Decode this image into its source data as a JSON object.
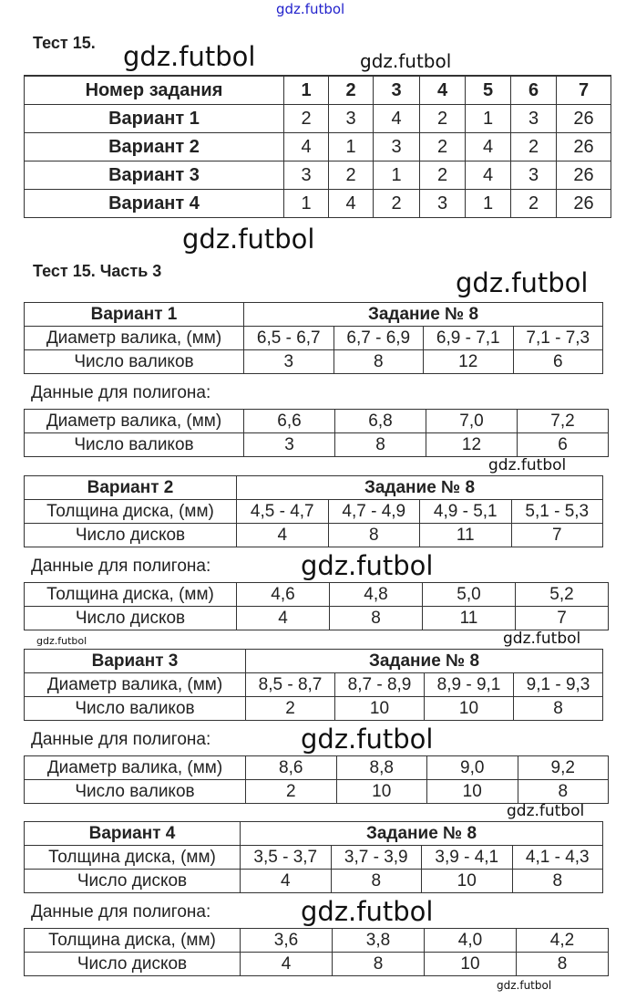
{
  "watermark": "gdz.futbol",
  "test_title": "Тест 15.",
  "part_title": "Тест 15. Часть 3",
  "summary_table": {
    "header": [
      "Номер задания",
      "1",
      "2",
      "3",
      "4",
      "5",
      "6",
      "7"
    ],
    "rows": [
      [
        "Вариант 1",
        "2",
        "3",
        "4",
        "2",
        "1",
        "3",
        "26"
      ],
      [
        "Вариант 2",
        "4",
        "1",
        "3",
        "2",
        "4",
        "2",
        "26"
      ],
      [
        "Вариант 3",
        "3",
        "2",
        "1",
        "2",
        "4",
        "3",
        "26"
      ],
      [
        "Вариант 4",
        "1",
        "4",
        "2",
        "3",
        "1",
        "2",
        "26"
      ]
    ]
  },
  "polygon_label": "Данные для полигона:",
  "variants": [
    {
      "variant": "Вариант 1",
      "task": "Задание № 8",
      "row1_label": "Диаметр валика, (мм)",
      "row2_label": "Число валиков",
      "intervals": [
        "6,5 - 6,7",
        "6,7 - 6,9",
        "6,9 - 7,1",
        "7,1 - 7,3"
      ],
      "midpoints": [
        "6,6",
        "6,8",
        "7,0",
        "7,2"
      ],
      "counts": [
        "3",
        "8",
        "12",
        "6"
      ]
    },
    {
      "variant": "Вариант 2",
      "task": "Задание № 8",
      "row1_label": "Толщина диска, (мм)",
      "row2_label": "Число дисков",
      "intervals": [
        "4,5 - 4,7",
        "4,7 - 4,9",
        "4,9 - 5,1",
        "5,1 - 5,3"
      ],
      "midpoints": [
        "4,6",
        "4,8",
        "5,0",
        "5,2"
      ],
      "counts": [
        "4",
        "8",
        "11",
        "7"
      ]
    },
    {
      "variant": "Вариант 3",
      "task": "Задание № 8",
      "row1_label": "Диаметр валика, (мм)",
      "row2_label": "Число валиков",
      "intervals": [
        "8,5 - 8,7",
        "8,7 - 8,9",
        "8,9 - 9,1",
        "9,1 - 9,3"
      ],
      "midpoints": [
        "8,6",
        "8,8",
        "9,0",
        "9,2"
      ],
      "counts": [
        "2",
        "10",
        "10",
        "8"
      ]
    },
    {
      "variant": "Вариант 4",
      "task": "Задание № 8",
      "row1_label": "Толщина диска, (мм)",
      "row2_label": "Число дисков",
      "intervals": [
        "3,5 - 3,7",
        "3,7 - 3,9",
        "3,9 - 4,1",
        "4,1 - 4,3"
      ],
      "midpoints": [
        "3,6",
        "3,8",
        "4,0",
        "4,2"
      ],
      "counts": [
        "4",
        "8",
        "10",
        "8"
      ]
    }
  ]
}
